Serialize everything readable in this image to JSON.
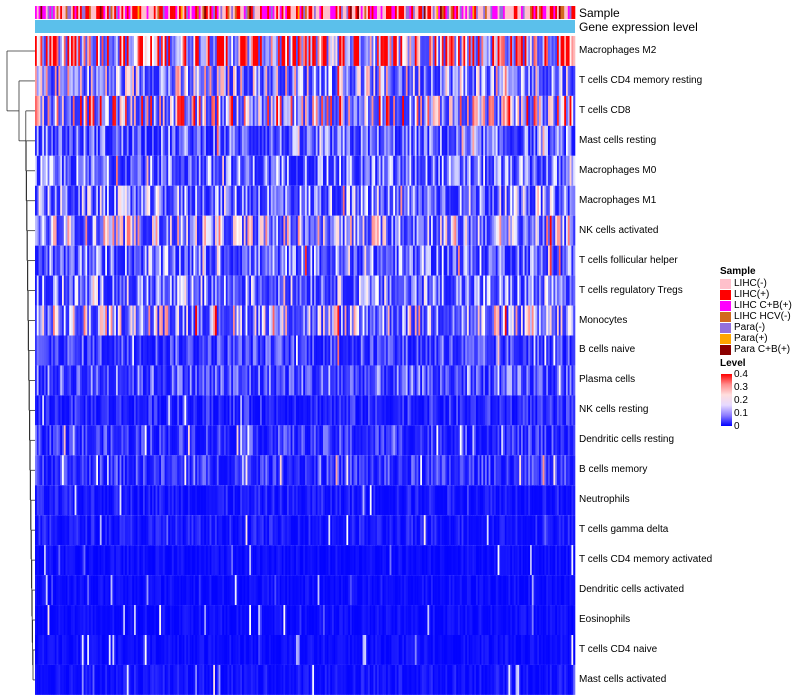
{
  "chart_data": {
    "type": "heatmap",
    "title": "",
    "annotation_tracks": [
      "Sample",
      "Gene expression level"
    ],
    "rows": [
      "Macrophages M2",
      "T cells CD4 memory resting",
      "T cells CD8",
      "Mast cells resting",
      "Macrophages M0",
      "Macrophages M1",
      "NK cells activated",
      "T cells follicular helper",
      "T cells regulatory  Tregs",
      "Monocytes",
      "B cells naive",
      "Plasma cells",
      "NK cells resting",
      "Dendritic cells resting",
      "B cells memory",
      "Neutrophils",
      "T cells gamma delta",
      "T cells CD4 memory activated",
      "Dendritic cells activated",
      "Eosinophils",
      "T cells CD4 naive",
      "Mast cells activated"
    ],
    "approx_row_mean_level": [
      0.26,
      0.12,
      0.16,
      0.07,
      0.08,
      0.09,
      0.12,
      0.08,
      0.09,
      0.12,
      0.05,
      0.06,
      0.03,
      0.04,
      0.04,
      0.02,
      0.02,
      0.01,
      0.01,
      0.01,
      0.01,
      0.015
    ],
    "n_samples": 300,
    "color_scale": {
      "min": 0,
      "max": 0.4,
      "low_color": "#0000ff",
      "mid_color": "#ffffff",
      "high_color": "#ff0000"
    },
    "gene_expression_track_color": "#5bc0eb",
    "legends": {
      "sample": {
        "title": "Sample",
        "items": [
          {
            "label": "LIHC(-)",
            "color": "#ffc0cb"
          },
          {
            "label": "LIHC(+)",
            "color": "#ff0000"
          },
          {
            "label": "LIHC C+B(+)",
            "color": "#ff00ff"
          },
          {
            "label": "LIHC HCV(-)",
            "color": "#d2691e"
          },
          {
            "label": "Para(-)",
            "color": "#9370db"
          },
          {
            "label": "Para(+)",
            "color": "#ffa500"
          },
          {
            "label": "Para C+B(+)",
            "color": "#8b0000"
          }
        ]
      },
      "level": {
        "title": "Level",
        "ticks": [
          "0.4",
          "0.3",
          "0.2",
          "0.1",
          "0"
        ]
      }
    }
  }
}
